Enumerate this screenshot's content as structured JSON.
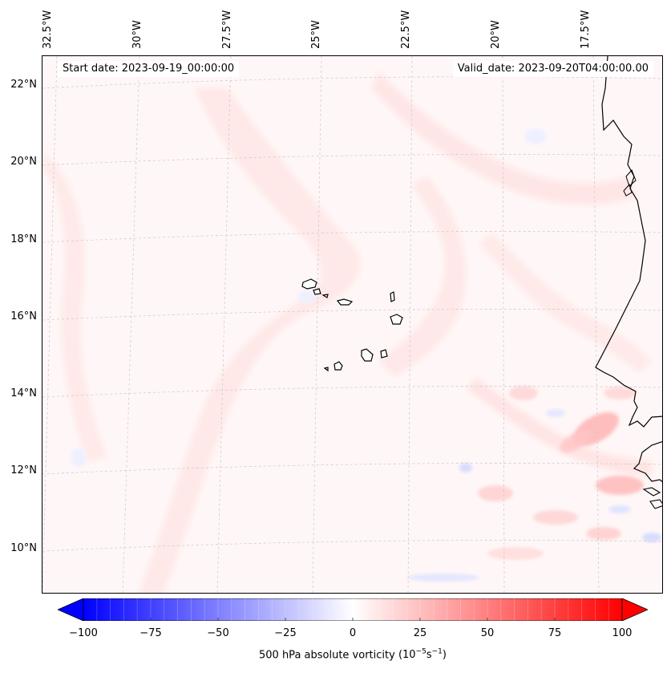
{
  "map": {
    "variable": "500 hPa absolute vorticity",
    "units_text": "(10",
    "units_exp1": "−5",
    "units_mid": "s",
    "units_exp2": "−1",
    "units_close": ")",
    "start_date_text": "Start date: 2023-09-19_00:00:00",
    "valid_date_text": "Valid_date: 2023-09-20T04:00:00.00",
    "longitude_labels": [
      "32.5°W",
      "30°W",
      "27.5°W",
      "25°W",
      "22.5°W",
      "20°W",
      "17.5°W"
    ],
    "latitude_labels": [
      "22°N",
      "20°N",
      "18°N",
      "16°N",
      "14°N",
      "12°N",
      "10°N"
    ],
    "features": [
      "Cape Verde islands",
      "West African coastline"
    ]
  },
  "colorbar": {
    "min": -100,
    "max": 100,
    "ticks": [
      "−100",
      "−75",
      "−50",
      "−25",
      "0",
      "25",
      "50",
      "75",
      "100"
    ],
    "colors": {
      "negative": "#0000ff",
      "zero": "#ffffff",
      "positive": "#ff0000"
    }
  }
}
